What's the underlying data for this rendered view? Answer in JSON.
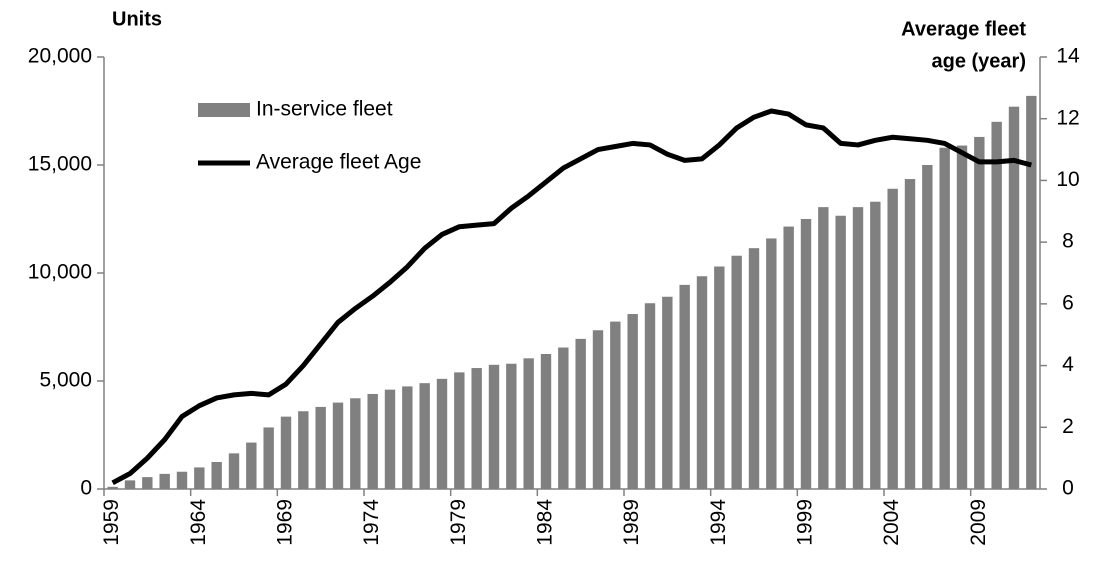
{
  "chart_data": {
    "type": "bar-line",
    "y_label": "Units",
    "y2_label": [
      "Average fleet",
      "age (year)"
    ],
    "legend": "upper left",
    "categories": [
      "1959",
      null,
      null,
      null,
      null,
      "1964",
      null,
      null,
      null,
      null,
      "1969",
      null,
      null,
      null,
      null,
      "1974",
      null,
      null,
      null,
      null,
      "1979",
      null,
      null,
      null,
      null,
      "1984",
      null,
      null,
      null,
      null,
      "1989",
      null,
      null,
      null,
      null,
      "1994",
      null,
      null,
      null,
      null,
      "1999",
      null,
      null,
      null,
      null,
      "2004",
      null,
      null,
      null,
      null,
      "2009",
      null,
      null,
      null
    ],
    "series": [
      {
        "name": "In-service fleet",
        "type": "bar",
        "color": "#808080",
        "values": [
          100,
          400,
          550,
          700,
          800,
          1000,
          1250,
          1650,
          2150,
          2850,
          3350,
          3600,
          3800,
          4000,
          4200,
          4400,
          4600,
          4750,
          4900,
          5100,
          5400,
          5600,
          5750,
          5800,
          6050,
          6250,
          6550,
          6950,
          7350,
          7750,
          8100,
          8600,
          8900,
          9450,
          9850,
          10300,
          10800,
          11150,
          11600,
          12150,
          12500,
          13050,
          12650,
          13050,
          13300,
          13900,
          14350,
          15000,
          15800,
          15900,
          16300,
          17000,
          17700,
          18200
        ]
      },
      {
        "name": "Average fleet Age",
        "type": "line",
        "axis": "y2",
        "color": "#000000",
        "values": [
          0.2,
          0.5,
          1.0,
          1.6,
          2.35,
          2.7,
          2.95,
          3.05,
          3.1,
          3.05,
          3.4,
          4.0,
          4.7,
          5.4,
          5.85,
          6.25,
          6.7,
          7.2,
          7.8,
          8.25,
          8.5,
          8.55,
          8.6,
          9.1,
          9.5,
          9.95,
          10.4,
          10.7,
          11.0,
          11.1,
          11.2,
          11.15,
          10.85,
          10.65,
          10.7,
          11.15,
          11.7,
          12.05,
          12.25,
          12.15,
          11.8,
          11.7,
          11.2,
          11.15,
          11.3,
          11.4,
          11.35,
          11.3,
          11.2,
          10.9,
          10.6,
          10.6,
          10.65,
          10.5
        ]
      }
    ],
    "ylim": [
      0,
      20000
    ],
    "yticks": [
      0,
      {
        "value": 5000,
        "label": "5,000"
      },
      {
        "value": 10000,
        "label": "10,000"
      },
      {
        "value": 15000,
        "label": "15,000"
      },
      {
        "value": 20000,
        "label": "20,000"
      }
    ],
    "y2lim": [
      0,
      14
    ],
    "y2ticks": [
      0,
      2,
      4,
      6,
      8,
      10,
      12,
      14
    ],
    "grid": false
  }
}
